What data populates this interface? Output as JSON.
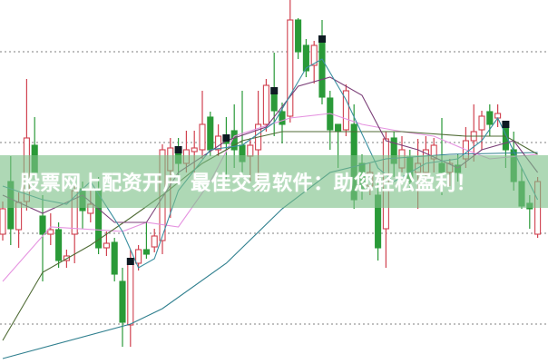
{
  "banner": {
    "text": "股票网上配资开户 最佳交易软件：助您轻松盈利！",
    "color": "#7dc087"
  },
  "chart_data": {
    "type": "candlestick",
    "title": "",
    "xlabel": "",
    "ylabel": "",
    "ylim": [
      0.56,
      4.57
    ],
    "grid": true,
    "grid_levels": [
      4,
      3,
      2,
      1
    ],
    "colors": {
      "up": "#d0414f",
      "down": "#2a9a38",
      "grid": "#999999",
      "marker": "#0e1a22"
    },
    "candles": [
      [
        1.99,
        2.35,
        1.92,
        2.27
      ],
      [
        2.57,
        2.85,
        1.87,
        2.05
      ],
      [
        2.04,
        2.45,
        1.84,
        2.34
      ],
      [
        2.35,
        3.7,
        2.25,
        3.05
      ],
      [
        2.97,
        3.28,
        2.59,
        2.67
      ],
      [
        2.19,
        2.42,
        1.47,
        1.99
      ],
      [
        1.99,
        2.22,
        1.87,
        2.04
      ],
      [
        2.04,
        2.12,
        1.62,
        1.7
      ],
      [
        1.7,
        1.82,
        1.62,
        1.75
      ],
      [
        1.99,
        2.52,
        1.67,
        2.47
      ],
      [
        2.49,
        2.57,
        2.05,
        2.25
      ],
      [
        2.22,
        2.67,
        2.12,
        2.32
      ],
      [
        2.47,
        2.62,
        1.77,
        1.84
      ],
      [
        1.84,
        2.02,
        1.75,
        1.89
      ],
      [
        1.9,
        1.95,
        1.47,
        1.55
      ],
      [
        1.47,
        1.62,
        0.75,
        1.02
      ],
      [
        0.99,
        1.82,
        0.75,
        1.69
      ],
      [
        1.67,
        1.87,
        1.59,
        1.82
      ],
      [
        1.82,
        2.12,
        1.72,
        1.77
      ],
      [
        1.85,
        2.05,
        1.79,
        1.97
      ],
      [
        1.92,
        2.98,
        1.77,
        2.92
      ],
      [
        2.69,
        3.05,
        2.17,
        2.94
      ],
      [
        2.92,
        3.05,
        2.57,
        2.77
      ],
      [
        2.77,
        3.13,
        2.67,
        2.92
      ],
      [
        2.9,
        3.13,
        2.57,
        2.94
      ],
      [
        2.92,
        3.57,
        2.82,
        3.2
      ],
      [
        3.28,
        3.34,
        2.85,
        2.92
      ],
      [
        2.92,
        3.2,
        2.85,
        3.07
      ],
      [
        3.05,
        3.28,
        2.57,
        2.99
      ],
      [
        3.13,
        3.42,
        2.72,
        2.92
      ],
      [
        2.97,
        3.57,
        2.67,
        2.79
      ],
      [
        2.85,
        3.05,
        2.57,
        2.97
      ],
      [
        2.92,
        3.57,
        2.47,
        3.2
      ],
      [
        3.2,
        3.7,
        3.12,
        3.63
      ],
      [
        3.57,
        3.99,
        3.07,
        3.35
      ],
      [
        3.34,
        3.44,
        2.99,
        3.2
      ],
      [
        3.29,
        4.57,
        3.22,
        4.35
      ],
      [
        4.35,
        4.37,
        3.92,
        4.0
      ],
      [
        4.07,
        4.14,
        3.72,
        3.79
      ],
      [
        3.85,
        4.12,
        3.65,
        4.07
      ],
      [
        4.14,
        4.35,
        3.42,
        3.5
      ],
      [
        3.49,
        3.57,
        2.92,
        3.14
      ],
      [
        3.2,
        3.2,
        2.72,
        3.12
      ],
      [
        3.14,
        3.64,
        3.07,
        3.57
      ],
      [
        3.2,
        3.42,
        2.27,
        2.37
      ],
      [
        2.77,
        2.87,
        2.37,
        2.47
      ],
      [
        2.52,
        2.77,
        2.42,
        2.67
      ],
      [
        2.42,
        2.57,
        1.7,
        1.84
      ],
      [
        2.05,
        3.12,
        1.62,
        3.04
      ],
      [
        3.05,
        3.12,
        2.62,
        2.77
      ],
      [
        2.72,
        3.07,
        2.67,
        2.92
      ],
      [
        2.84,
        2.92,
        2.47,
        2.57
      ],
      [
        2.67,
        3.04,
        2.27,
        2.77
      ],
      [
        2.67,
        3.07,
        2.57,
        2.92
      ],
      [
        2.82,
        3.05,
        2.67,
        2.97
      ],
      [
        2.77,
        3.27,
        2.42,
        2.67
      ],
      [
        2.67,
        2.82,
        2.52,
        2.77
      ],
      [
        2.75,
        2.87,
        2.57,
        2.67
      ],
      [
        2.82,
        3.17,
        2.72,
        3.02
      ],
      [
        3.02,
        3.42,
        2.79,
        3.12
      ],
      [
        3.14,
        3.35,
        2.92,
        3.29
      ],
      [
        3.34,
        3.42,
        3.07,
        3.2
      ],
      [
        3.27,
        3.42,
        3.17,
        3.32
      ],
      [
        3.2,
        3.22,
        2.72,
        2.92
      ],
      [
        2.92,
        3.12,
        2.47,
        2.57
      ],
      [
        2.57,
        2.72,
        2.27,
        2.3
      ],
      [
        2.33,
        2.42,
        2.05,
        2.27
      ],
      [
        1.99,
        2.62,
        1.95,
        2.57
      ]
    ],
    "signal_markers": [
      16,
      22,
      28,
      34,
      40,
      63
    ],
    "lines": [
      {
        "color": "#2f7f8e",
        "points": [
          [
            0,
            0.62
          ],
          [
            16,
            1.0
          ],
          [
            20,
            1.17
          ],
          [
            28,
            1.67
          ],
          [
            35,
            2.27
          ],
          [
            41,
            2.67
          ],
          [
            48,
            2.82
          ],
          [
            56,
            2.87
          ],
          [
            67,
            2.89
          ]
        ]
      },
      {
        "color": "#e593e0",
        "points": [
          [
            0,
            1.47
          ],
          [
            6,
            2.07
          ],
          [
            15,
            2.02
          ],
          [
            18,
            2.12
          ],
          [
            22,
            2.07
          ],
          [
            26,
            2.57
          ],
          [
            29,
            3.07
          ],
          [
            36,
            3.27
          ],
          [
            41,
            3.32
          ],
          [
            45,
            3.2
          ],
          [
            50,
            3.12
          ],
          [
            54,
            3.07
          ],
          [
            58,
            2.92
          ],
          [
            61,
            2.82
          ],
          [
            67,
            2.87
          ]
        ]
      },
      {
        "color": "#4f6b35",
        "points": [
          [
            0,
            0.82
          ],
          [
            5,
            1.57
          ],
          [
            11,
            1.87
          ],
          [
            16,
            2.17
          ],
          [
            20,
            2.42
          ],
          [
            25,
            2.77
          ],
          [
            30,
            3.02
          ],
          [
            35,
            3.12
          ],
          [
            41,
            3.12
          ],
          [
            45,
            3.12
          ],
          [
            50,
            3.12
          ],
          [
            58,
            3.07
          ],
          [
            63,
            3.07
          ],
          [
            67,
            2.87
          ]
        ]
      },
      {
        "color": "#7b3f78",
        "points": [
          [
            0,
            2.42
          ],
          [
            5,
            2.22
          ],
          [
            10,
            2.42
          ],
          [
            14,
            2.12
          ],
          [
            18,
            2.12
          ],
          [
            22,
            2.67
          ],
          [
            28,
            3.02
          ],
          [
            33,
            3.17
          ],
          [
            37,
            3.62
          ],
          [
            41,
            3.72
          ],
          [
            45,
            3.52
          ],
          [
            48,
            3.02
          ],
          [
            52,
            2.92
          ],
          [
            57,
            2.72
          ],
          [
            60,
            2.92
          ],
          [
            64,
            3.02
          ],
          [
            67,
            2.67
          ]
        ]
      },
      {
        "color": "#3a8fa0",
        "points": [
          [
            0,
            2.52
          ],
          [
            5,
            2.37
          ],
          [
            8,
            2.32
          ],
          [
            11,
            2.57
          ],
          [
            15,
            2.02
          ],
          [
            17,
            1.62
          ],
          [
            19,
            1.72
          ],
          [
            22,
            2.47
          ],
          [
            26,
            2.92
          ],
          [
            30,
            2.97
          ],
          [
            34,
            3.22
          ],
          [
            38,
            3.82
          ],
          [
            40,
            3.92
          ],
          [
            43,
            3.47
          ],
          [
            47,
            2.72
          ],
          [
            49,
            2.57
          ],
          [
            53,
            2.77
          ],
          [
            57,
            2.82
          ],
          [
            60,
            3.02
          ],
          [
            62,
            3.27
          ],
          [
            65,
            2.72
          ],
          [
            67,
            2.37
          ]
        ]
      }
    ]
  }
}
